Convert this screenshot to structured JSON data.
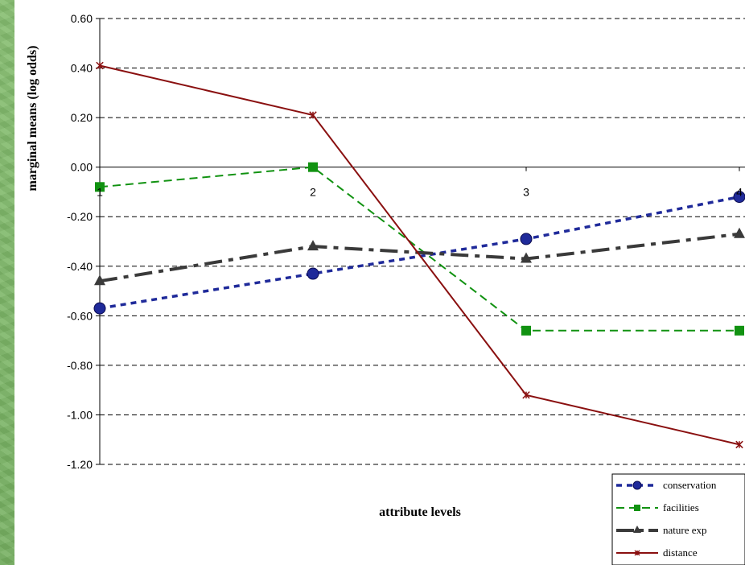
{
  "chart_data": {
    "type": "line",
    "title": "",
    "xlabel": "attribute levels",
    "ylabel": "marginal means (log odds)",
    "categories": [
      "1",
      "2",
      "3",
      "4"
    ],
    "ylim": [
      -1.2,
      0.6
    ],
    "yticks": [
      "0.60",
      "0.40",
      "0.20",
      "0.00",
      "-0.20",
      "-0.40",
      "-0.60",
      "-0.80",
      "-1.00",
      "-1.20"
    ],
    "grid": "horizontal dashed",
    "legend_position": "bottom-right",
    "series": [
      {
        "name": "conservation",
        "values": [
          -0.57,
          -0.43,
          -0.29,
          -0.12
        ],
        "color": "#1f2a9a",
        "marker": "circle",
        "line": "dotted"
      },
      {
        "name": "facilities",
        "values": [
          -0.08,
          0.0,
          -0.66,
          -0.66
        ],
        "color": "#119211",
        "marker": "square",
        "line": "dashed"
      },
      {
        "name": "nature exp",
        "values": [
          -0.46,
          -0.32,
          -0.37,
          -0.27
        ],
        "color": "#3a3a3a",
        "marker": "triangle",
        "line": "dash-dot"
      },
      {
        "name": "distance",
        "values": [
          0.41,
          0.21,
          -0.92,
          -1.12
        ],
        "color": "#8a1010",
        "marker": "star",
        "line": "solid"
      }
    ]
  }
}
